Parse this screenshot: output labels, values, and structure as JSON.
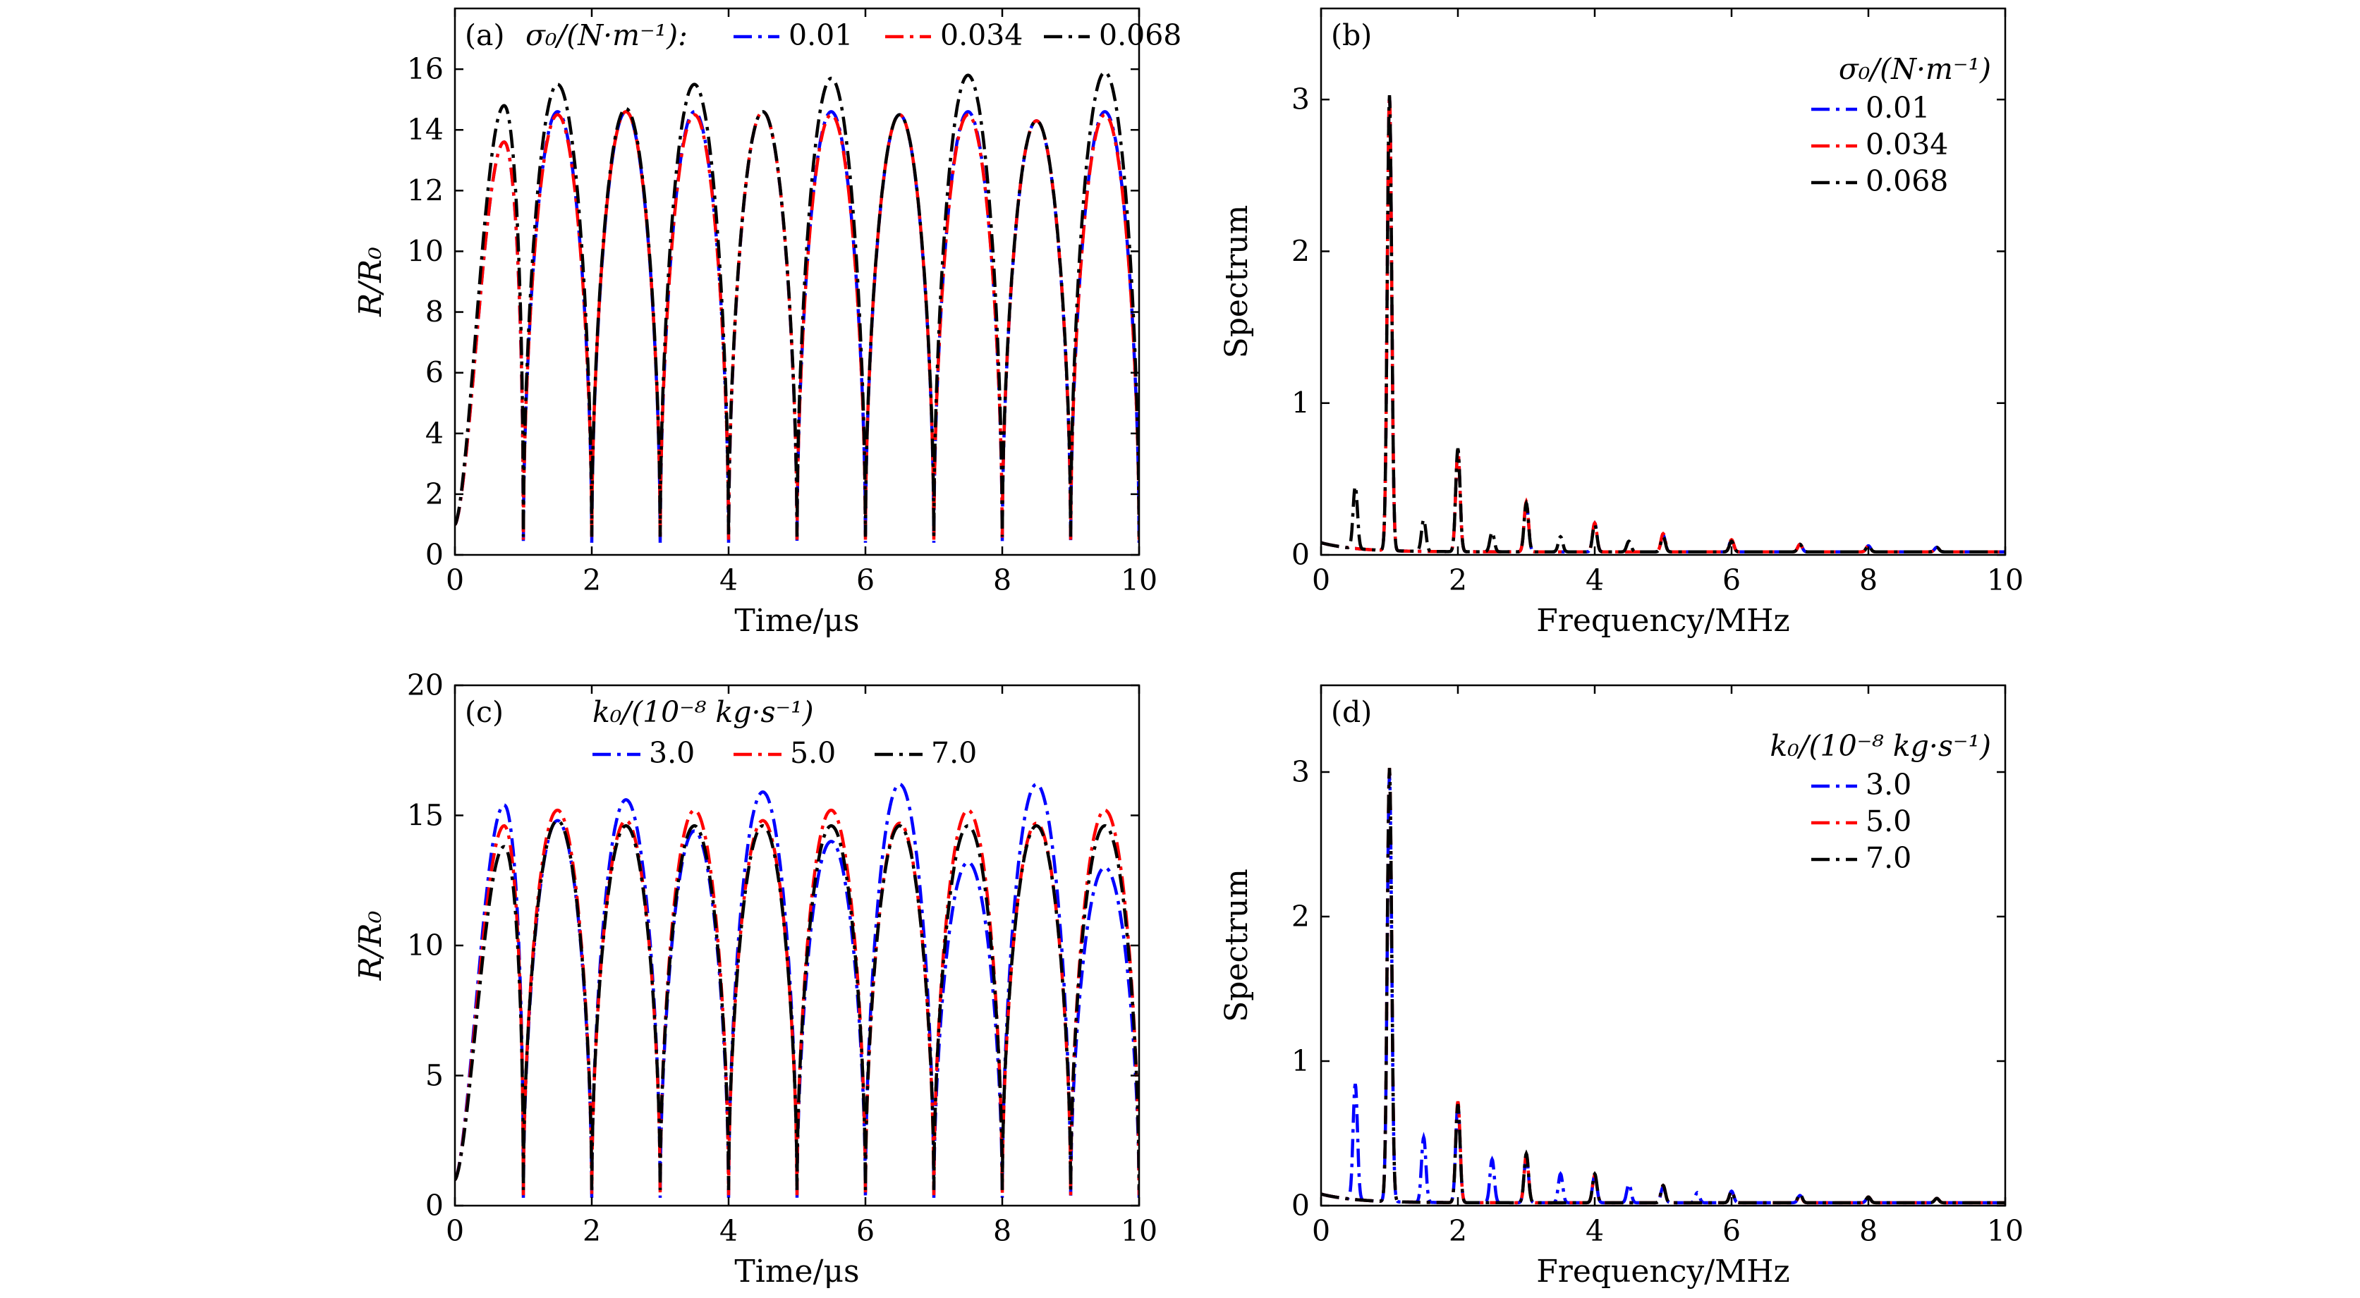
{
  "chart_data": [
    {
      "id": "a",
      "type": "line",
      "panel": "(a)",
      "xlabel": "Time/μs",
      "ylabel": "R/R₀",
      "xlim": [
        0,
        10
      ],
      "ylim": [
        0,
        18
      ],
      "xticks": [
        "0",
        "2",
        "4",
        "6",
        "8",
        "10"
      ],
      "yticks": [
        "0",
        "2",
        "4",
        "6",
        "8",
        "10",
        "12",
        "14",
        "16"
      ],
      "legend_title": "σ₀/(N·m⁻¹):",
      "legend_layout": "inline",
      "period": 1.0,
      "series": [
        {
          "name": "0.01",
          "color": "#0000ff",
          "peaks": [
            13.6,
            14.6,
            14.6,
            14.6,
            14.6,
            14.6,
            14.5,
            14.6,
            14.3,
            14.6
          ],
          "minima": [
            0.4,
            0.4,
            0.4,
            0.4,
            0.4,
            0.4,
            0.4,
            0.4,
            0.4,
            0.4
          ]
        },
        {
          "name": "0.034",
          "color": "#ff0000",
          "peaks": [
            13.6,
            14.5,
            14.6,
            14.5,
            14.6,
            14.5,
            14.5,
            14.5,
            14.3,
            14.5
          ],
          "minima": [
            0.5,
            0.5,
            0.5,
            0.5,
            0.5,
            0.5,
            0.5,
            0.5,
            0.5,
            0.5
          ]
        },
        {
          "name": "0.068",
          "color": "#000000",
          "peaks": [
            14.8,
            15.5,
            14.7,
            15.5,
            14.6,
            15.7,
            14.5,
            15.8,
            14.3,
            15.9
          ],
          "minima": [
            0.6,
            0.6,
            0.6,
            0.6,
            0.6,
            0.6,
            0.6,
            0.6,
            0.6,
            0.6
          ]
        }
      ]
    },
    {
      "id": "b",
      "type": "line",
      "panel": "(b)",
      "xlabel": "Frequency/MHz",
      "ylabel": "Spectrum",
      "xlim": [
        0,
        10
      ],
      "ylim": [
        0,
        3.6
      ],
      "xticks": [
        "0",
        "2",
        "4",
        "6",
        "8",
        "10"
      ],
      "yticks": [
        "0",
        "1",
        "2",
        "3"
      ],
      "legend_title": "σ₀/(N·m⁻¹)",
      "legend_layout": "stacked",
      "series": [
        {
          "name": "0.01",
          "color": "#0000ff",
          "peaks": [
            [
              1,
              3.0
            ],
            [
              2,
              0.66
            ],
            [
              3,
              0.32
            ],
            [
              4,
              0.19
            ],
            [
              5,
              0.11
            ],
            [
              6,
              0.08
            ],
            [
              7,
              0.05
            ],
            [
              8,
              0.04
            ],
            [
              9,
              0.03
            ]
          ]
        },
        {
          "name": "0.034",
          "color": "#ff0000",
          "peaks": [
            [
              1,
              3.0
            ],
            [
              2,
              0.66
            ],
            [
              3,
              0.33
            ],
            [
              4,
              0.19
            ],
            [
              5,
              0.12
            ],
            [
              6,
              0.08
            ],
            [
              7,
              0.05
            ],
            [
              8,
              0.04
            ],
            [
              9,
              0.03
            ]
          ]
        },
        {
          "name": "0.068",
          "color": "#000000",
          "peaks": [
            [
              0.5,
              0.41
            ],
            [
              1,
              3.0
            ],
            [
              1.5,
              0.21
            ],
            [
              2,
              0.68
            ],
            [
              2.5,
              0.13
            ],
            [
              3,
              0.32
            ],
            [
              3.5,
              0.1
            ],
            [
              4,
              0.18
            ],
            [
              4.5,
              0.07
            ],
            [
              5,
              0.1
            ],
            [
              6,
              0.07
            ],
            [
              7,
              0.05
            ],
            [
              8,
              0.04
            ],
            [
              9,
              0.03
            ]
          ]
        }
      ]
    },
    {
      "id": "c",
      "type": "line",
      "panel": "(c)",
      "xlabel": "Time/μs",
      "ylabel": "R/R₀",
      "xlim": [
        0,
        10
      ],
      "ylim": [
        0,
        20
      ],
      "xticks": [
        "0",
        "2",
        "4",
        "6",
        "8",
        "10"
      ],
      "yticks": [
        "0",
        "5",
        "10",
        "15",
        "20"
      ],
      "legend_title": "k₀/(10⁻⁸ kg·s⁻¹)",
      "legend_layout": "inline-below",
      "period": 1.0,
      "series": [
        {
          "name": "3.0",
          "color": "#0000ff",
          "peaks": [
            15.4,
            14.8,
            15.6,
            14.4,
            15.9,
            14.0,
            16.2,
            13.2,
            16.2,
            13.0
          ],
          "minima": [
            0.3,
            0.3,
            0.3,
            0.3,
            0.3,
            0.3,
            0.3,
            0.3,
            0.3,
            0.3
          ]
        },
        {
          "name": "5.0",
          "color": "#ff0000",
          "peaks": [
            14.6,
            15.2,
            14.8,
            15.2,
            14.8,
            15.2,
            14.7,
            15.2,
            14.7,
            15.2
          ],
          "minima": [
            0.4,
            0.4,
            0.4,
            0.4,
            0.4,
            0.4,
            0.4,
            0.4,
            0.4,
            0.4
          ]
        },
        {
          "name": "7.0",
          "color": "#000000",
          "peaks": [
            13.8,
            14.8,
            14.6,
            14.6,
            14.6,
            14.6,
            14.6,
            14.6,
            14.6,
            14.6
          ],
          "minima": [
            0.6,
            0.6,
            0.6,
            0.6,
            0.6,
            0.6,
            0.6,
            0.6,
            0.6,
            0.6
          ]
        }
      ]
    },
    {
      "id": "d",
      "type": "line",
      "panel": "(d)",
      "xlabel": "Frequency/MHz",
      "ylabel": "Spectrum",
      "xlim": [
        0,
        10
      ],
      "ylim": [
        0,
        3.6
      ],
      "xticks": [
        "0",
        "2",
        "4",
        "6",
        "8",
        "10"
      ],
      "yticks": [
        "0",
        "1",
        "2",
        "3"
      ],
      "legend_title": "k₀/(10⁻⁸ kg·s⁻¹)",
      "legend_layout": "stacked",
      "series": [
        {
          "name": "3.0",
          "color": "#0000ff",
          "peaks": [
            [
              0.5,
              0.8
            ],
            [
              1,
              2.95
            ],
            [
              1.5,
              0.45
            ],
            [
              2,
              0.68
            ],
            [
              2.5,
              0.3
            ],
            [
              3,
              0.32
            ],
            [
              3.5,
              0.2
            ],
            [
              4,
              0.19
            ],
            [
              4.5,
              0.13
            ],
            [
              5,
              0.11
            ],
            [
              5.5,
              0.07
            ],
            [
              6,
              0.08
            ],
            [
              7,
              0.05
            ],
            [
              8,
              0.04
            ],
            [
              9,
              0.03
            ]
          ]
        },
        {
          "name": "5.0",
          "color": "#ff0000",
          "peaks": [
            [
              1,
              3.0
            ],
            [
              2,
              0.7
            ],
            [
              3,
              0.33
            ],
            [
              4,
              0.19
            ],
            [
              5,
              0.12
            ],
            [
              6,
              0.08
            ],
            [
              7,
              0.05
            ],
            [
              8,
              0.04
            ],
            [
              9,
              0.03
            ]
          ]
        },
        {
          "name": "7.0",
          "color": "#000000",
          "peaks": [
            [
              1,
              3.0
            ],
            [
              2,
              0.68
            ],
            [
              3,
              0.34
            ],
            [
              4,
              0.2
            ],
            [
              5,
              0.12
            ],
            [
              6,
              0.08
            ],
            [
              7,
              0.06
            ],
            [
              8,
              0.04
            ],
            [
              9,
              0.03
            ]
          ]
        }
      ]
    }
  ]
}
